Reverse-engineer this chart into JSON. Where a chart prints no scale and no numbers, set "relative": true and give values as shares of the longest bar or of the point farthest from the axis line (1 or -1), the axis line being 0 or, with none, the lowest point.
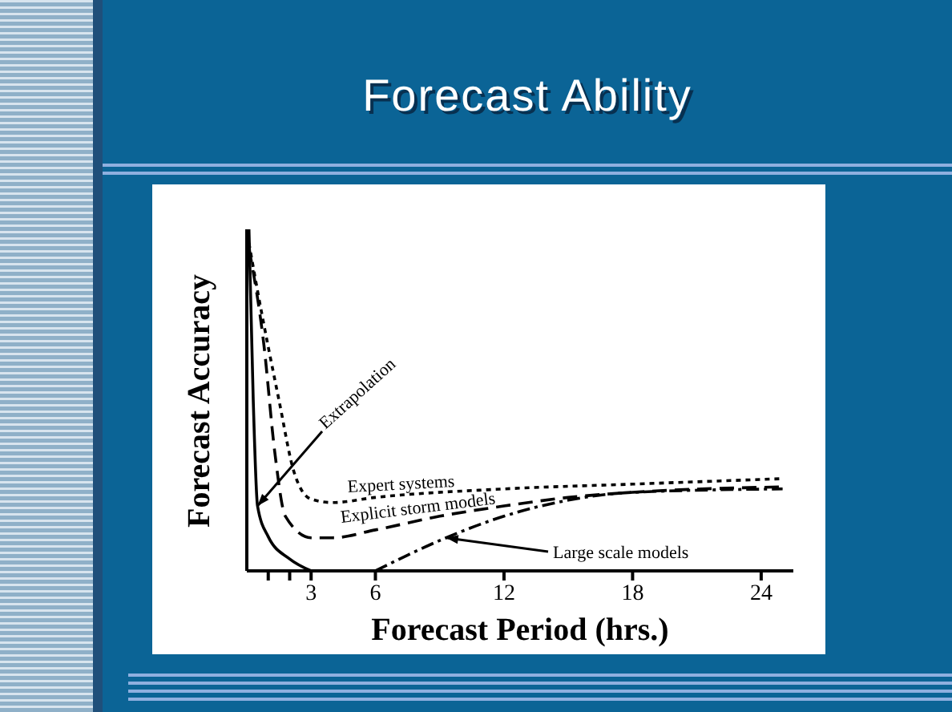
{
  "chart_data": {
    "type": "line",
    "title": "Forecast Ability",
    "xlabel": "Forecast Period (hrs.)",
    "ylabel": "Forecast Accuracy",
    "relative": true,
    "xlim": [
      0,
      25.5
    ],
    "xticks": [
      {
        "value": 1,
        "label": null
      },
      {
        "value": 2,
        "label": null
      },
      3,
      6,
      12,
      18,
      24
    ],
    "marker": "none",
    "series": [
      {
        "name": "Extrapolation",
        "color": "#000000",
        "line_style": "solid",
        "x": [
          0.1,
          0.3,
          0.5,
          1,
          2,
          3
        ],
        "values": [
          1,
          0.5,
          0.19,
          0.1,
          0.035,
          0
        ]
      },
      {
        "name": "Expert systems",
        "color": "#000000",
        "line_style": "dotted",
        "x": [
          0.1,
          0.5,
          1.5,
          2.2,
          3,
          4,
          6,
          12,
          18,
          25
        ],
        "values": [
          0.96,
          0.82,
          0.5,
          0.29,
          0.21,
          0.2,
          0.215,
          0.24,
          0.254,
          0.27
        ]
      },
      {
        "name": "Explicit storm models",
        "color": "#000000",
        "line_style": "dashed",
        "x": [
          0.1,
          0.8,
          1.3,
          1.8,
          3,
          4,
          6,
          9,
          12,
          15,
          18,
          25
        ],
        "values": [
          0.945,
          0.66,
          0.35,
          0.16,
          0.097,
          0.097,
          0.12,
          0.16,
          0.19,
          0.215,
          0.23,
          0.246
        ]
      },
      {
        "name": "Large scale models",
        "color": "#000000",
        "line_style": "dashdot",
        "x": [
          6,
          9.3,
          12,
          15,
          18,
          25
        ],
        "values": [
          0,
          0.097,
          0.16,
          0.207,
          0.23,
          0.24
        ]
      }
    ]
  }
}
